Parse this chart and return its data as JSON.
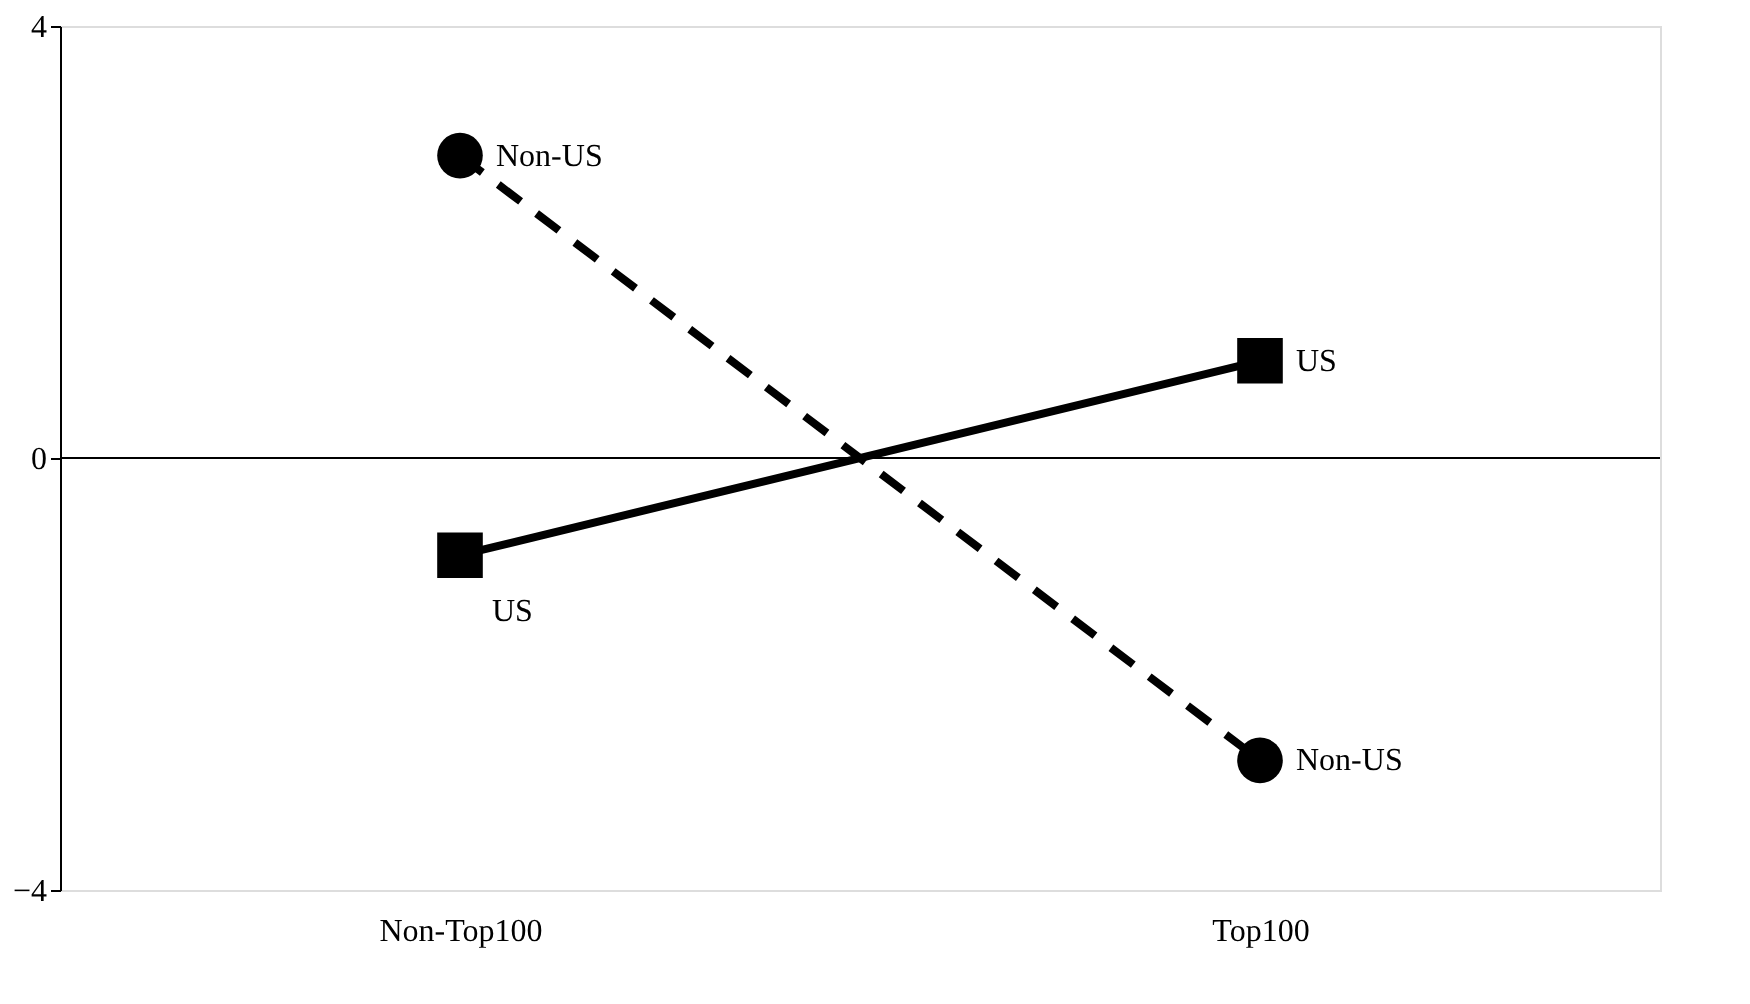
{
  "chart_data": {
    "type": "line",
    "categories": [
      "Non-Top100",
      "Top100"
    ],
    "series": [
      {
        "name": "Non-US",
        "color": "#000000",
        "values": [
          2.8,
          -2.8
        ],
        "marker": "circle",
        "line_style": "dashed"
      },
      {
        "name": "US",
        "color": "#000000",
        "values": [
          -0.9,
          0.9
        ],
        "marker": "square",
        "line_style": "solid"
      }
    ],
    "ylim": [
      -4,
      4
    ],
    "yticks": [
      -4,
      0,
      4
    ],
    "grid": false,
    "ref_lines": [
      {
        "axis": "y",
        "value": 0,
        "color": "#000000"
      }
    ]
  }
}
